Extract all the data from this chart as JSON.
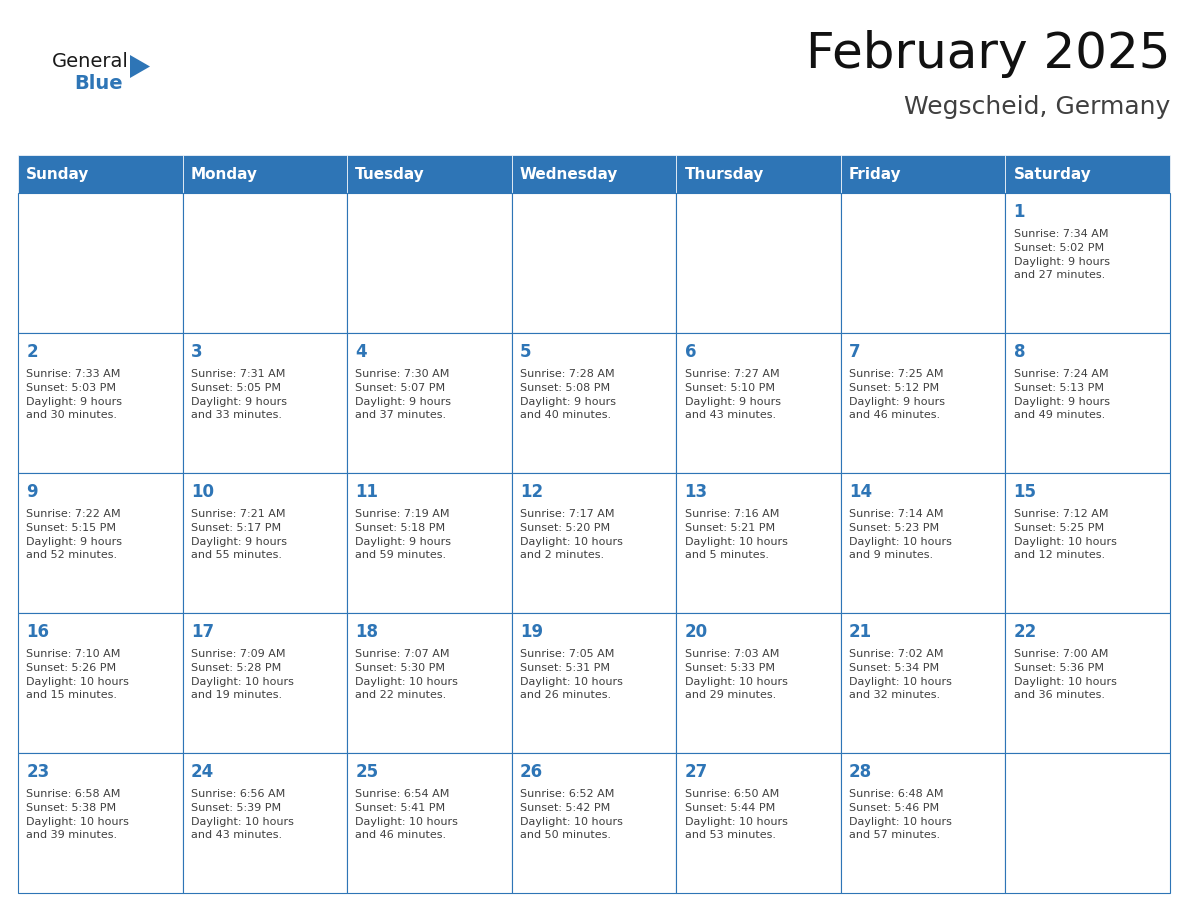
{
  "title": "February 2025",
  "subtitle": "Wegscheid, Germany",
  "header_bg": "#2E75B6",
  "header_text_color": "#FFFFFF",
  "cell_border_color": "#2E75B6",
  "day_number_color": "#2E75B6",
  "info_text_color": "#404040",
  "background_color": "#FFFFFF",
  "days_of_week": [
    "Sunday",
    "Monday",
    "Tuesday",
    "Wednesday",
    "Thursday",
    "Friday",
    "Saturday"
  ],
  "weeks": [
    [
      {
        "day": "",
        "info": ""
      },
      {
        "day": "",
        "info": ""
      },
      {
        "day": "",
        "info": ""
      },
      {
        "day": "",
        "info": ""
      },
      {
        "day": "",
        "info": ""
      },
      {
        "day": "",
        "info": ""
      },
      {
        "day": "1",
        "info": "Sunrise: 7:34 AM\nSunset: 5:02 PM\nDaylight: 9 hours\nand 27 minutes."
      }
    ],
    [
      {
        "day": "2",
        "info": "Sunrise: 7:33 AM\nSunset: 5:03 PM\nDaylight: 9 hours\nand 30 minutes."
      },
      {
        "day": "3",
        "info": "Sunrise: 7:31 AM\nSunset: 5:05 PM\nDaylight: 9 hours\nand 33 minutes."
      },
      {
        "day": "4",
        "info": "Sunrise: 7:30 AM\nSunset: 5:07 PM\nDaylight: 9 hours\nand 37 minutes."
      },
      {
        "day": "5",
        "info": "Sunrise: 7:28 AM\nSunset: 5:08 PM\nDaylight: 9 hours\nand 40 minutes."
      },
      {
        "day": "6",
        "info": "Sunrise: 7:27 AM\nSunset: 5:10 PM\nDaylight: 9 hours\nand 43 minutes."
      },
      {
        "day": "7",
        "info": "Sunrise: 7:25 AM\nSunset: 5:12 PM\nDaylight: 9 hours\nand 46 minutes."
      },
      {
        "day": "8",
        "info": "Sunrise: 7:24 AM\nSunset: 5:13 PM\nDaylight: 9 hours\nand 49 minutes."
      }
    ],
    [
      {
        "day": "9",
        "info": "Sunrise: 7:22 AM\nSunset: 5:15 PM\nDaylight: 9 hours\nand 52 minutes."
      },
      {
        "day": "10",
        "info": "Sunrise: 7:21 AM\nSunset: 5:17 PM\nDaylight: 9 hours\nand 55 minutes."
      },
      {
        "day": "11",
        "info": "Sunrise: 7:19 AM\nSunset: 5:18 PM\nDaylight: 9 hours\nand 59 minutes."
      },
      {
        "day": "12",
        "info": "Sunrise: 7:17 AM\nSunset: 5:20 PM\nDaylight: 10 hours\nand 2 minutes."
      },
      {
        "day": "13",
        "info": "Sunrise: 7:16 AM\nSunset: 5:21 PM\nDaylight: 10 hours\nand 5 minutes."
      },
      {
        "day": "14",
        "info": "Sunrise: 7:14 AM\nSunset: 5:23 PM\nDaylight: 10 hours\nand 9 minutes."
      },
      {
        "day": "15",
        "info": "Sunrise: 7:12 AM\nSunset: 5:25 PM\nDaylight: 10 hours\nand 12 minutes."
      }
    ],
    [
      {
        "day": "16",
        "info": "Sunrise: 7:10 AM\nSunset: 5:26 PM\nDaylight: 10 hours\nand 15 minutes."
      },
      {
        "day": "17",
        "info": "Sunrise: 7:09 AM\nSunset: 5:28 PM\nDaylight: 10 hours\nand 19 minutes."
      },
      {
        "day": "18",
        "info": "Sunrise: 7:07 AM\nSunset: 5:30 PM\nDaylight: 10 hours\nand 22 minutes."
      },
      {
        "day": "19",
        "info": "Sunrise: 7:05 AM\nSunset: 5:31 PM\nDaylight: 10 hours\nand 26 minutes."
      },
      {
        "day": "20",
        "info": "Sunrise: 7:03 AM\nSunset: 5:33 PM\nDaylight: 10 hours\nand 29 minutes."
      },
      {
        "day": "21",
        "info": "Sunrise: 7:02 AM\nSunset: 5:34 PM\nDaylight: 10 hours\nand 32 minutes."
      },
      {
        "day": "22",
        "info": "Sunrise: 7:00 AM\nSunset: 5:36 PM\nDaylight: 10 hours\nand 36 minutes."
      }
    ],
    [
      {
        "day": "23",
        "info": "Sunrise: 6:58 AM\nSunset: 5:38 PM\nDaylight: 10 hours\nand 39 minutes."
      },
      {
        "day": "24",
        "info": "Sunrise: 6:56 AM\nSunset: 5:39 PM\nDaylight: 10 hours\nand 43 minutes."
      },
      {
        "day": "25",
        "info": "Sunrise: 6:54 AM\nSunset: 5:41 PM\nDaylight: 10 hours\nand 46 minutes."
      },
      {
        "day": "26",
        "info": "Sunrise: 6:52 AM\nSunset: 5:42 PM\nDaylight: 10 hours\nand 50 minutes."
      },
      {
        "day": "27",
        "info": "Sunrise: 6:50 AM\nSunset: 5:44 PM\nDaylight: 10 hours\nand 53 minutes."
      },
      {
        "day": "28",
        "info": "Sunrise: 6:48 AM\nSunset: 5:46 PM\nDaylight: 10 hours\nand 57 minutes."
      },
      {
        "day": "",
        "info": ""
      }
    ]
  ],
  "logo_text1": "General",
  "logo_text2": "Blue",
  "logo_color1": "#1a1a1a",
  "logo_color2": "#2E75B6",
  "logo_triangle_color": "#2E75B6",
  "title_fontsize": 36,
  "subtitle_fontsize": 18,
  "header_fontsize": 11,
  "day_num_fontsize": 12,
  "info_fontsize": 8
}
